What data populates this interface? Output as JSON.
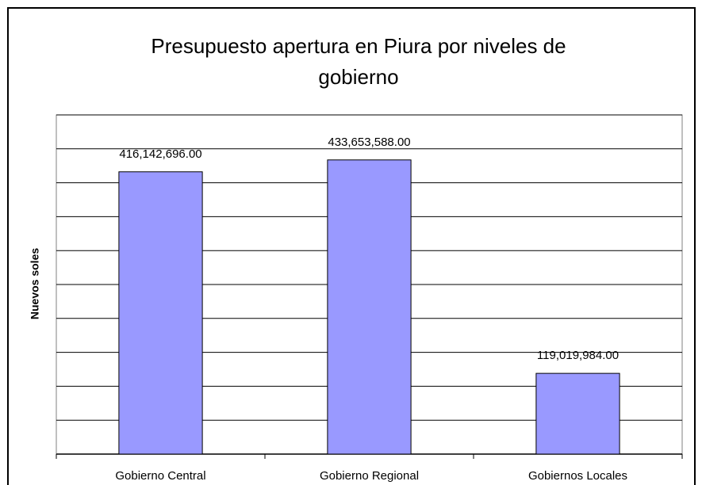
{
  "chart_data": {
    "type": "bar",
    "title": "Presupuesto apertura en Piura por niveles de gobierno",
    "y_axis_label": "Nuevos soles",
    "categories": [
      "Gobierno Central",
      "Gobierno Regional",
      "Gobiernos Locales"
    ],
    "values": [
      416142696,
      433653588,
      119019984
    ],
    "value_labels": [
      "416,142,696.00",
      "433,653,588.00",
      "119,019,984.00"
    ],
    "color": "#9999ff",
    "ylim": [
      0,
      500000000
    ],
    "yticks": [
      0,
      50000000,
      100000000,
      150000000,
      200000000,
      250000000,
      300000000,
      350000000,
      400000000,
      450000000,
      500000000
    ],
    "grid": true
  }
}
